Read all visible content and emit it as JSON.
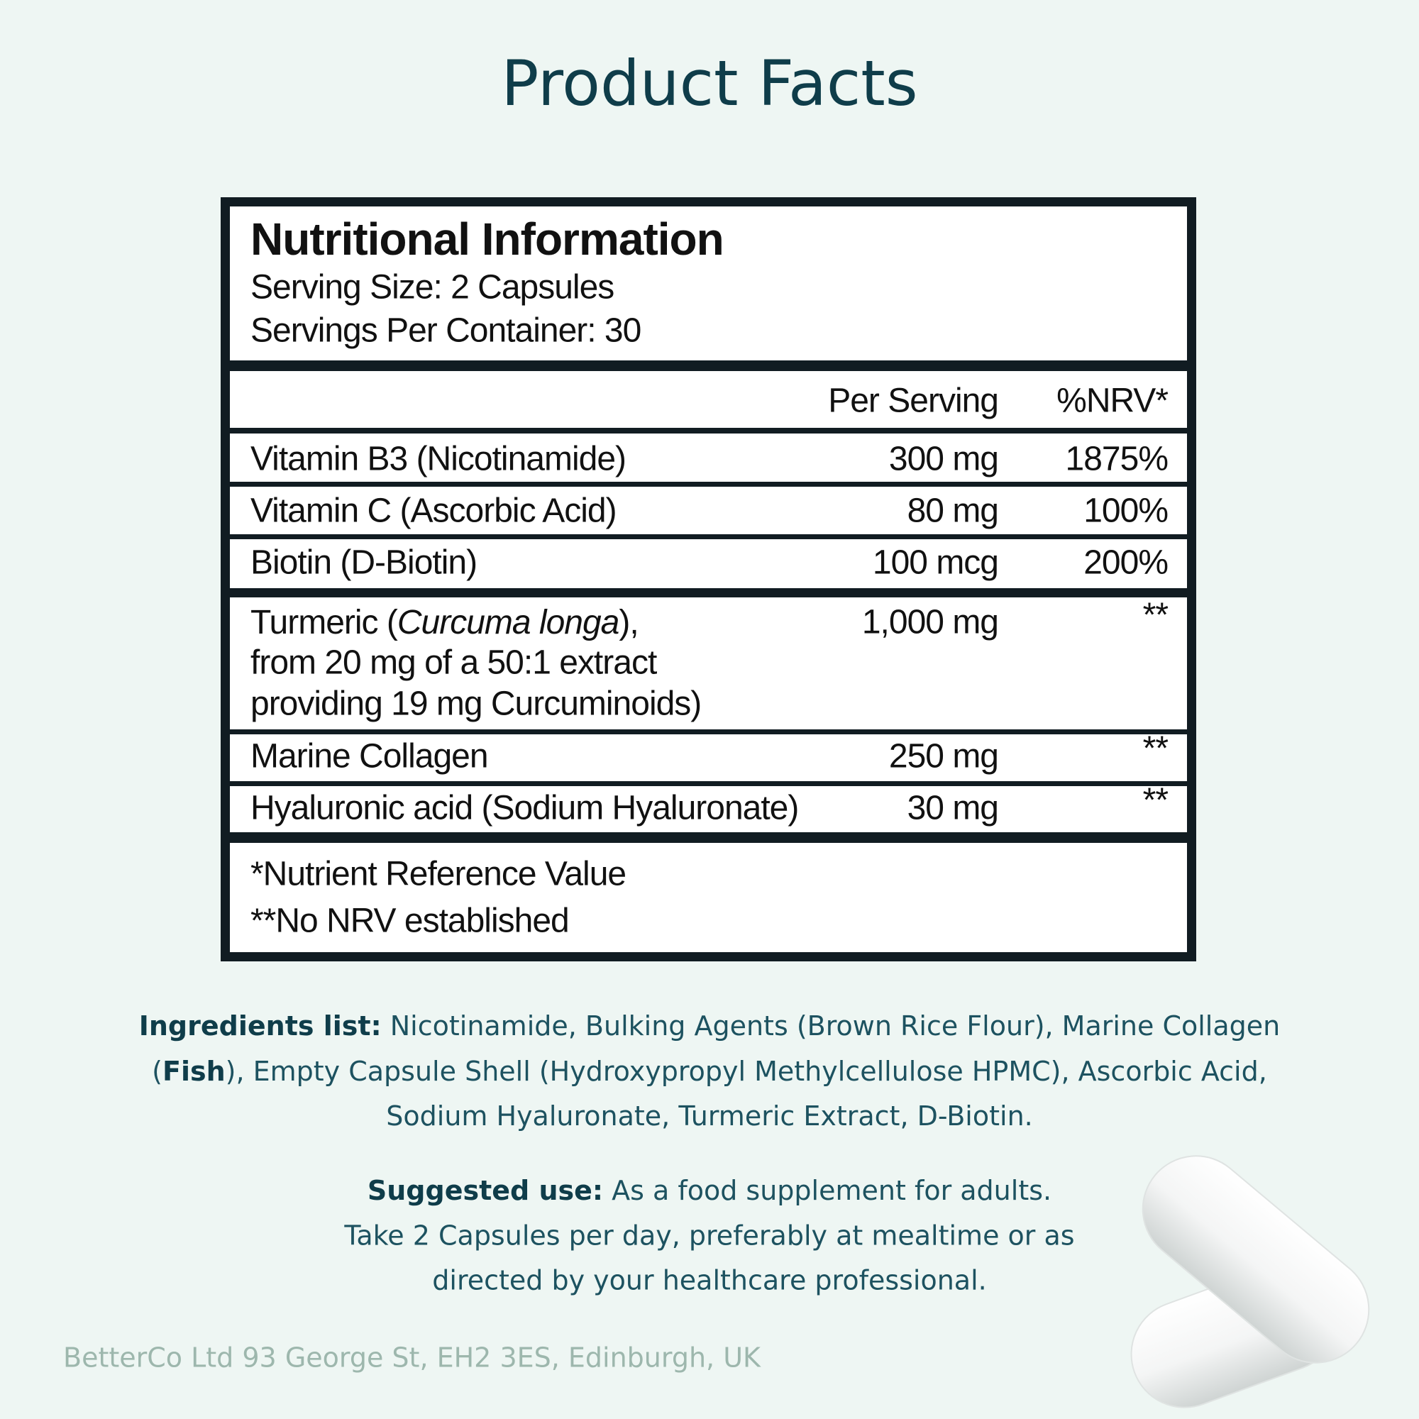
{
  "title": "Product Facts",
  "label": {
    "heading": "Nutritional Information",
    "serving_size": "Serving Size: 2 Capsules",
    "servings_per_container": "Servings Per Container: 30",
    "columns": [
      "Per Serving",
      "%NRV*"
    ],
    "rows": [
      {
        "name": "Vitamin B3 (Nicotinamide)",
        "amount": "300 mg",
        "nrv": "1875%"
      },
      {
        "name": "Vitamin C (Ascorbic Acid)",
        "amount": "80 mg",
        "nrv": "100%"
      },
      {
        "name": "Biotin (D-Biotin)",
        "amount": "100 mcg",
        "nrv": "200%"
      },
      {
        "name": "Turmeric (",
        "name_italic": "Curcuma longa",
        "name_end": "),",
        "detail": [
          "from 20 mg of a 50:1 extract",
          "providing 19 mg Curcuminoids)"
        ],
        "amount": "1,000 mg",
        "nrv": "**"
      },
      {
        "name": "Marine Collagen",
        "amount": "250 mg",
        "nrv": "**"
      },
      {
        "name": "Hyaluronic acid (Sodium Hyaluronate)",
        "amount": "30 mg",
        "nrv": "**"
      }
    ],
    "footnotes": [
      "*Nutrient Reference Value",
      "**No NRV established"
    ]
  },
  "ingredients": {
    "label": "Ingredients list:",
    "lines": [
      [
        "Nicotinamide, Bulking Agents (Brown Rice Flour), Marine Collagen"
      ],
      [
        "(",
        "Fish",
        "), Empty Capsule Shell (Hydroxypropyl Methylcellulose HPMC), Ascorbic Acid,"
      ],
      [
        "Sodium Hyaluronate, Turmeric Extract, D-Biotin."
      ]
    ]
  },
  "suggested_use": {
    "label": "Suggested use:",
    "lines": [
      "As a food supplement for adults.",
      "Take 2 Capsules per day, preferably at mealtime or as",
      "directed by your healthcare professional."
    ]
  },
  "address": "BetterCo Ltd 93 George St, EH2 3ES, Edinburgh, UK"
}
